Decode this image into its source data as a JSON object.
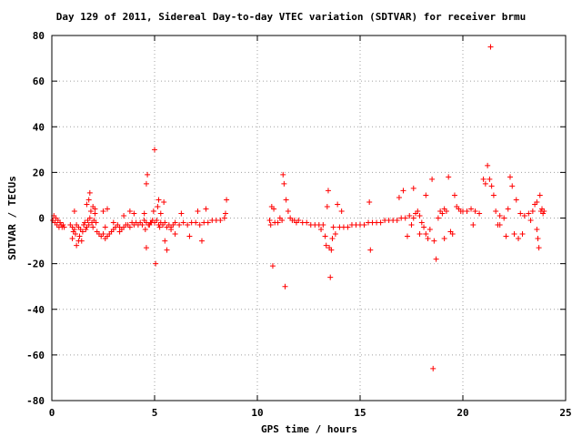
{
  "chart_data": {
    "type": "scatter",
    "title": "Day 129 of 2011, Sidereal Day-to-day VTEC variation (SDTVAR) for receiver brmu",
    "xlabel": "GPS time / hours",
    "ylabel": "SDTVAR / TECUs",
    "xlim": [
      0,
      25
    ],
    "ylim": [
      -80,
      80
    ],
    "xticks": [
      "0",
      "5",
      "10",
      "15",
      "20",
      "25"
    ],
    "yticks": [
      "80",
      "60",
      "40",
      "20",
      "0",
      "-20",
      "-40",
      "-60",
      "-80"
    ],
    "grid": true,
    "marker": "+",
    "marker_color": "#ff0000",
    "series": [
      {
        "points": [
          [
            0.05,
            -1
          ],
          [
            0.1,
            1
          ],
          [
            0.15,
            -2
          ],
          [
            0.2,
            0
          ],
          [
            0.25,
            -3
          ],
          [
            0.3,
            -1
          ],
          [
            0.35,
            -4
          ],
          [
            0.4,
            -2
          ],
          [
            0.45,
            -3
          ],
          [
            0.5,
            -4
          ],
          [
            0.55,
            -3
          ],
          [
            0.6,
            -4
          ],
          [
            0.9,
            -3
          ],
          [
            1.0,
            -4
          ],
          [
            1.05,
            -6
          ],
          [
            1.1,
            -5
          ],
          [
            1.15,
            -7
          ],
          [
            1.2,
            -3
          ],
          [
            1.3,
            -4
          ],
          [
            1.35,
            -8
          ],
          [
            1.4,
            -5
          ],
          [
            1.45,
            -10
          ],
          [
            1.5,
            -6
          ],
          [
            1.55,
            -3
          ],
          [
            1.6,
            -2
          ],
          [
            1.65,
            -5
          ],
          [
            1.7,
            -4
          ],
          [
            1.75,
            -1
          ],
          [
            1.8,
            -3
          ],
          [
            1.85,
            0
          ],
          [
            1.9,
            3
          ],
          [
            1.95,
            -2
          ],
          [
            2.0,
            -4
          ],
          [
            2.05,
            -1
          ],
          [
            2.1,
            2
          ],
          [
            2.15,
            -2
          ],
          [
            1.8,
            8
          ],
          [
            1.85,
            11
          ],
          [
            1.7,
            6
          ],
          [
            2.0,
            5
          ],
          [
            2.1,
            4
          ],
          [
            2.2,
            -6
          ],
          [
            2.3,
            -7
          ],
          [
            2.4,
            -8
          ],
          [
            2.5,
            -7
          ],
          [
            2.6,
            -9
          ],
          [
            2.7,
            -8
          ],
          [
            2.8,
            -7
          ],
          [
            2.9,
            -6
          ],
          [
            3.0,
            -5
          ],
          [
            3.1,
            -4
          ],
          [
            3.2,
            -3
          ],
          [
            3.3,
            -4
          ],
          [
            3.4,
            -5
          ],
          [
            3.5,
            -4
          ],
          [
            3.6,
            -3
          ],
          [
            3.7,
            -3
          ],
          [
            3.8,
            -4
          ],
          [
            3.9,
            -2
          ],
          [
            4.0,
            -3
          ],
          [
            4.1,
            -2
          ],
          [
            4.2,
            -3
          ],
          [
            4.3,
            -2
          ],
          [
            4.4,
            -3
          ],
          [
            4.5,
            -1
          ],
          [
            4.6,
            -2
          ],
          [
            4.7,
            -3
          ],
          [
            4.8,
            -2
          ],
          [
            4.9,
            -1
          ],
          [
            5.0,
            -2
          ],
          [
            5.1,
            -1
          ],
          [
            5.2,
            -3
          ],
          [
            5.3,
            -2
          ],
          [
            5.4,
            -3
          ],
          [
            5.5,
            -2
          ],
          [
            5.6,
            -4
          ],
          [
            5.7,
            -3
          ],
          [
            5.8,
            -4
          ],
          [
            5.9,
            -3
          ],
          [
            6.0,
            -2
          ],
          [
            6.2,
            -3
          ],
          [
            6.4,
            -2
          ],
          [
            6.6,
            -3
          ],
          [
            6.8,
            -2
          ],
          [
            7.0,
            -2
          ],
          [
            7.2,
            -3
          ],
          [
            7.4,
            -2
          ],
          [
            7.6,
            -2
          ],
          [
            7.8,
            -1
          ],
          [
            8.0,
            -1
          ],
          [
            8.2,
            -1
          ],
          [
            8.4,
            0
          ],
          [
            8.5,
            8
          ],
          [
            8.45,
            2
          ],
          [
            4.65,
            19
          ],
          [
            4.6,
            15
          ],
          [
            5.0,
            30
          ],
          [
            4.85,
            -2
          ],
          [
            4.95,
            3
          ],
          [
            5.05,
            -20
          ],
          [
            5.15,
            5
          ],
          [
            5.3,
            2
          ],
          [
            5.5,
            -10
          ],
          [
            5.6,
            -14
          ],
          [
            5.8,
            -5
          ],
          [
            6.0,
            -7
          ],
          [
            4.5,
            2
          ],
          [
            4.55,
            -5
          ],
          [
            4.6,
            -13
          ],
          [
            4.75,
            -3
          ],
          [
            5.2,
            8
          ],
          [
            5.25,
            -4
          ],
          [
            5.45,
            7
          ],
          [
            6.7,
            -8
          ],
          [
            7.1,
            3
          ],
          [
            7.3,
            -10
          ],
          [
            7.5,
            4
          ],
          [
            6.3,
            2
          ],
          [
            2.5,
            3
          ],
          [
            2.7,
            4
          ],
          [
            3.0,
            -2
          ],
          [
            3.5,
            1
          ],
          [
            4.0,
            2
          ],
          [
            3.8,
            3
          ],
          [
            3.3,
            -6
          ],
          [
            2.6,
            -4
          ],
          [
            1.3,
            -10
          ],
          [
            1.2,
            -12
          ],
          [
            1.0,
            -9
          ],
          [
            1.1,
            3
          ],
          [
            10.6,
            -1
          ],
          [
            10.65,
            -3
          ],
          [
            10.7,
            5
          ],
          [
            10.75,
            -21
          ],
          [
            10.8,
            4
          ],
          [
            10.85,
            -2
          ],
          [
            11.0,
            -2
          ],
          [
            11.1,
            0
          ],
          [
            11.2,
            -1
          ],
          [
            11.25,
            19
          ],
          [
            11.3,
            15
          ],
          [
            11.35,
            -30
          ],
          [
            11.4,
            8
          ],
          [
            11.5,
            3
          ],
          [
            11.6,
            0
          ],
          [
            11.7,
            -1
          ],
          [
            11.8,
            -1
          ],
          [
            11.9,
            -2
          ],
          [
            12.0,
            -1
          ],
          [
            12.2,
            -2
          ],
          [
            12.4,
            -2
          ],
          [
            12.6,
            -3
          ],
          [
            12.8,
            -3
          ],
          [
            13.0,
            -3
          ],
          [
            13.1,
            -5
          ],
          [
            13.2,
            -3
          ],
          [
            13.3,
            -8
          ],
          [
            13.35,
            -12
          ],
          [
            13.4,
            5
          ],
          [
            13.45,
            12
          ],
          [
            13.5,
            -13
          ],
          [
            13.55,
            -26
          ],
          [
            13.6,
            -14
          ],
          [
            13.65,
            -9
          ],
          [
            13.7,
            -4
          ],
          [
            13.8,
            -7
          ],
          [
            13.9,
            6
          ],
          [
            14.0,
            -4
          ],
          [
            14.1,
            3
          ],
          [
            14.2,
            -4
          ],
          [
            14.4,
            -4
          ],
          [
            14.6,
            -3
          ],
          [
            14.8,
            -3
          ],
          [
            15.0,
            -3
          ],
          [
            15.2,
            -3
          ],
          [
            15.4,
            -2
          ],
          [
            15.5,
            -14
          ],
          [
            15.45,
            7
          ],
          [
            15.6,
            -2
          ],
          [
            15.8,
            -2
          ],
          [
            16.0,
            -2
          ],
          [
            16.2,
            -1
          ],
          [
            16.4,
            -1
          ],
          [
            16.6,
            -1
          ],
          [
            16.8,
            -1
          ],
          [
            17.0,
            0
          ],
          [
            17.2,
            0
          ],
          [
            17.4,
            1
          ],
          [
            17.5,
            -3
          ],
          [
            17.6,
            0
          ],
          [
            17.7,
            2
          ],
          [
            17.8,
            3
          ],
          [
            17.9,
            1
          ],
          [
            18.0,
            -2
          ],
          [
            18.1,
            -4
          ],
          [
            18.2,
            -7
          ],
          [
            18.3,
            -9
          ],
          [
            18.4,
            -5
          ],
          [
            18.5,
            17
          ],
          [
            18.55,
            -66
          ],
          [
            18.6,
            -10
          ],
          [
            18.7,
            -18
          ],
          [
            18.8,
            0
          ],
          [
            18.9,
            3
          ],
          [
            19.0,
            2
          ],
          [
            19.1,
            4
          ],
          [
            19.2,
            3
          ],
          [
            19.3,
            18
          ],
          [
            19.4,
            -6
          ],
          [
            19.5,
            -7
          ],
          [
            19.6,
            10
          ],
          [
            19.7,
            5
          ],
          [
            19.8,
            4
          ],
          [
            19.9,
            3
          ],
          [
            20.0,
            3
          ],
          [
            20.2,
            3
          ],
          [
            20.4,
            4
          ],
          [
            20.6,
            3
          ],
          [
            20.8,
            2
          ],
          [
            21.0,
            17
          ],
          [
            21.1,
            15
          ],
          [
            21.2,
            23
          ],
          [
            21.3,
            17
          ],
          [
            21.35,
            75
          ],
          [
            21.4,
            14
          ],
          [
            21.5,
            10
          ],
          [
            21.6,
            3
          ],
          [
            21.7,
            -3
          ],
          [
            21.8,
            1
          ],
          [
            22.0,
            0
          ],
          [
            22.2,
            4
          ],
          [
            22.3,
            18
          ],
          [
            22.4,
            14
          ],
          [
            22.5,
            -7
          ],
          [
            22.6,
            8
          ],
          [
            22.7,
            -9
          ],
          [
            22.8,
            2
          ],
          [
            23.0,
            1
          ],
          [
            23.2,
            2
          ],
          [
            23.4,
            3
          ],
          [
            23.5,
            6
          ],
          [
            23.6,
            -5
          ],
          [
            23.65,
            -9
          ],
          [
            23.7,
            -13
          ],
          [
            23.75,
            10
          ],
          [
            23.8,
            3
          ],
          [
            23.85,
            4
          ],
          [
            23.9,
            2
          ],
          [
            23.95,
            3
          ],
          [
            17.1,
            12
          ],
          [
            16.9,
            9
          ],
          [
            17.3,
            -8
          ],
          [
            17.6,
            13
          ],
          [
            17.9,
            -7
          ],
          [
            18.2,
            10
          ],
          [
            19.1,
            -9
          ],
          [
            20.5,
            -3
          ],
          [
            21.8,
            -3
          ],
          [
            22.9,
            -7
          ],
          [
            23.3,
            -1
          ],
          [
            23.6,
            7
          ],
          [
            22.1,
            -8
          ]
        ]
      }
    ]
  }
}
